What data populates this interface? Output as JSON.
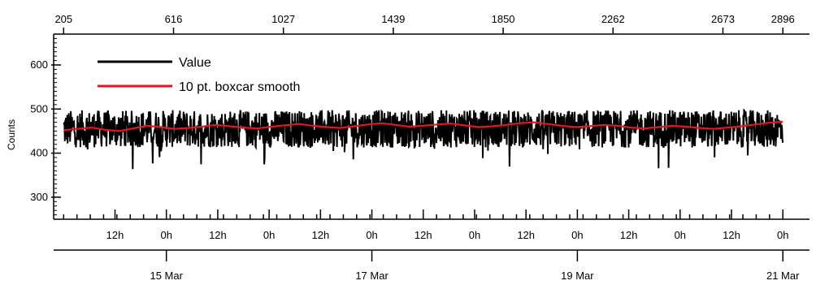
{
  "chart_data": {
    "type": "line",
    "title": "",
    "ylabel": "Counts",
    "ylim": [
      250,
      670
    ],
    "y_ticks": [
      300,
      400,
      500,
      600
    ],
    "grid": false,
    "legend_placement": "top-left",
    "x_domain_hours": [
      -18,
      1344
    ],
    "top_axis": {
      "label": "",
      "ticks": [
        {
          "label": "205",
          "hour": 0
        },
        {
          "label": "616",
          "hour": 198
        },
        {
          "label": "1027",
          "hour": 396
        },
        {
          "label": "1439",
          "hour": 594
        },
        {
          "label": "1850",
          "hour": 792
        },
        {
          "label": "2262",
          "hour": 990
        },
        {
          "label": "2673",
          "hour": 1188
        },
        {
          "label": "2896",
          "hour": 1296
        }
      ]
    },
    "bottom_axis": {
      "hour_ticks": [
        {
          "label": "12h",
          "hour": 12
        },
        {
          "label": "0h",
          "hour": 24
        },
        {
          "label": "12h",
          "hour": 36
        },
        {
          "label": "0h",
          "hour": 48
        },
        {
          "label": "12h",
          "hour": 60
        },
        {
          "label": "0h",
          "hour": 72
        },
        {
          "label": "12h",
          "hour": 84
        },
        {
          "label": "0h",
          "hour": 96
        },
        {
          "label": "12h",
          "hour": 108
        },
        {
          "label": "0h",
          "hour": 120
        },
        {
          "label": "12h",
          "hour": 132
        },
        {
          "label": "0h",
          "hour": 144
        },
        {
          "label": "12h",
          "hour": 156
        },
        {
          "label": "0h",
          "hour": 168
        }
      ],
      "date_ticks": [
        {
          "label": "15 Mar",
          "hour": 24
        },
        {
          "label": "17 Mar",
          "hour": 72
        },
        {
          "label": "19 Mar",
          "hour": 120
        },
        {
          "label": "21 Mar",
          "hour": 168
        }
      ]
    },
    "series": [
      {
        "name": "Value",
        "color": "#000000",
        "description_mean": 455,
        "band": [
          410,
          495
        ]
      },
      {
        "name": "10 pt. boxcar smooth",
        "color": "#e8141c",
        "smoothed_values": [
          452,
          455,
          458,
          453,
          450,
          456,
          462,
          459,
          455,
          457,
          460,
          464,
          461,
          458,
          456,
          460,
          463,
          466,
          462,
          459,
          457,
          461,
          465,
          468,
          464,
          460,
          462,
          465,
          467,
          463,
          459,
          461,
          464,
          468,
          470,
          466,
          462,
          459,
          461,
          464,
          462,
          458,
          456,
          459,
          462,
          460,
          457,
          455,
          458,
          461,
          465,
          469,
          471
        ]
      }
    ]
  }
}
